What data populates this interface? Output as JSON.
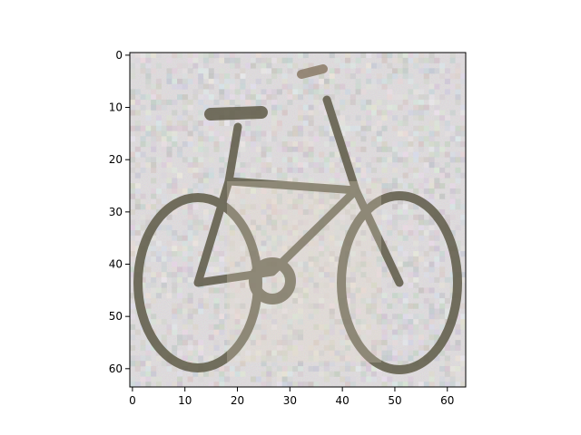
{
  "figure": {
    "image_label": "pixelated bicycle photo",
    "x_axis": {
      "ticks": [
        0,
        10,
        20,
        30,
        40,
        50,
        60
      ],
      "range": [
        -0.5,
        63.5
      ]
    },
    "y_axis": {
      "ticks": [
        0,
        10,
        20,
        30,
        40,
        50,
        60
      ],
      "range": [
        -0.5,
        63.5
      ],
      "inverted": true
    },
    "grid": false,
    "colors": {
      "background_noise": "#d2cfd2",
      "bike_frame": "#5e5a47",
      "axis": "#000000"
    }
  }
}
